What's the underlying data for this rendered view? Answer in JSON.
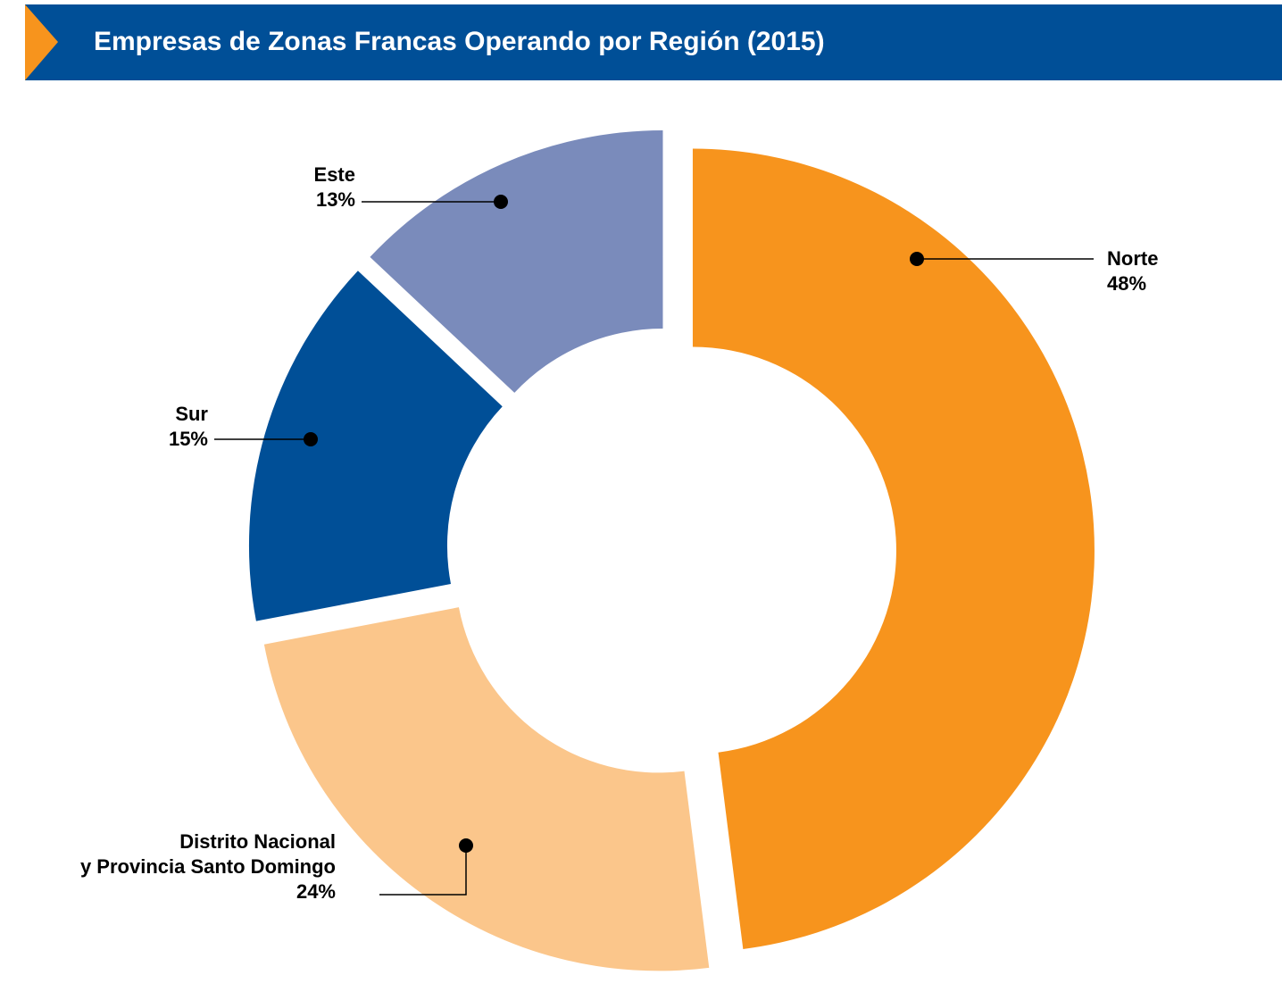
{
  "chart_data": {
    "type": "donut",
    "title": "Empresas de Zonas Francas Operando por Región (2015)",
    "categories": [
      "Norte",
      "Distrito Nacional\ny Provincia Santo Domingo",
      "Sur",
      "Este"
    ],
    "values": [
      48,
      24,
      15,
      13
    ],
    "value_labels": [
      "48%",
      "24%",
      "15%",
      "13%"
    ],
    "colors": [
      "#f7941d",
      "#fbc68b",
      "#004f97",
      "#7a8bbb"
    ]
  }
}
